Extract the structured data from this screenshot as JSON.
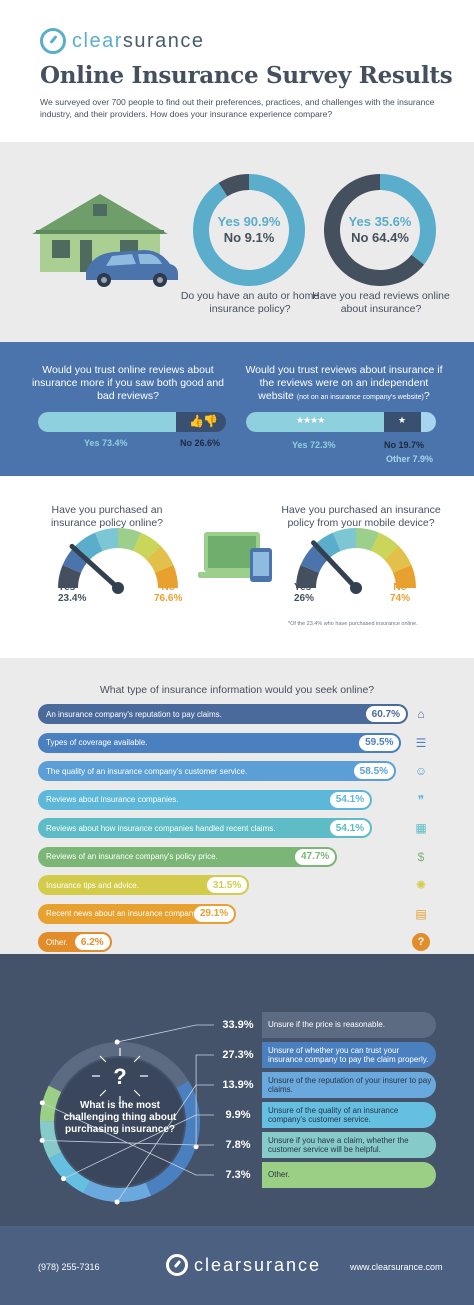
{
  "brand": {
    "prefix": "clear",
    "suffix": "surance"
  },
  "header": {
    "title": "Online Insurance Survey Results",
    "intro": "We surveyed over 700 people to find out their preferences, practices, and challenges with the insurance industry, and their providers. How does your insurance experience compare?"
  },
  "colors": {
    "teal": "#5aaecb",
    "dark": "#45505f",
    "blue": "#4b74ad",
    "navy": "#44526a",
    "orange": "#e8a02f"
  },
  "section1": {
    "donut1": {
      "yes": "Yes 90.9%",
      "no": "No 9.1%",
      "question": "Do you have an auto or home insurance policy?"
    },
    "donut2": {
      "yes": "Yes 35.6%",
      "no": "No 64.4%",
      "question": "Have you read reviews online about insurance?"
    }
  },
  "section2": {
    "q1": "Would you trust online reviews about insurance more if you saw both good and bad reviews?",
    "q1_yes": "Yes 73.4%",
    "q1_no": "No 26.6%",
    "q2": "Would you trust reviews about insurance if the reviews were on an independent website",
    "q2_small": "(not on an insurance company's website)",
    "q2_yes": "Yes 72.3%",
    "q2_no": "No 19.7%",
    "q2_other": "Other 7.9%"
  },
  "section3": {
    "q1": "Have you purchased an insurance policy online?",
    "q1_yes_label": "Yes",
    "q1_yes": "23.4%",
    "q1_no_label": "No",
    "q1_no": "76.6%",
    "q2": "Have you purchased an insurance policy from your mobile device?",
    "q2_yes_label": "Yes",
    "q2_yes": "26%",
    "q2_no_label": "No",
    "q2_no": "74%",
    "note": "*Of the 23.4% who have purchased insurance online."
  },
  "section4": {
    "question": "What type of insurance information would you seek online?"
  },
  "section5": {
    "question": "What is the most challenging thing about purchasing insurance?"
  },
  "footer": {
    "phone": "(978) 255-7316",
    "website": "www.clearsurance.com"
  },
  "chart_data": [
    {
      "type": "pie",
      "title": "Do you have an auto or home insurance policy?",
      "categories": [
        "Yes",
        "No"
      ],
      "values": [
        90.9,
        9.1
      ]
    },
    {
      "type": "pie",
      "title": "Have you read reviews online about insurance?",
      "categories": [
        "Yes",
        "No"
      ],
      "values": [
        35.6,
        64.4
      ]
    },
    {
      "type": "bar",
      "title": "Would you trust online reviews about insurance more if you saw both good and bad reviews?",
      "categories": [
        "Yes",
        "No"
      ],
      "values": [
        73.4,
        26.6
      ]
    },
    {
      "type": "bar",
      "title": "Would you trust reviews about insurance if the reviews were on an independent website",
      "categories": [
        "Yes",
        "No",
        "Other"
      ],
      "values": [
        72.3,
        19.7,
        7.9
      ]
    },
    {
      "type": "pie",
      "title": "Have you purchased an insurance policy online?",
      "categories": [
        "Yes",
        "No"
      ],
      "values": [
        23.4,
        76.6
      ]
    },
    {
      "type": "pie",
      "title": "Have you purchased an insurance policy from your mobile device?",
      "categories": [
        "Yes",
        "No"
      ],
      "values": [
        26,
        74
      ]
    },
    {
      "type": "bar",
      "title": "What type of insurance information would you seek online?",
      "categories": [
        "An insurance company's reputation to pay claims.",
        "Types of coverage available.",
        "The quality of an insurance company's customer service.",
        "Reviews about insurance companies.",
        "Reviews about how insurance companies handled recent claims.",
        "Reviews of an insurance company's policy price.",
        "Insurance tips and advice.",
        "Recent news about an insurance company.",
        "Other."
      ],
      "values": [
        60.7,
        59.5,
        58.5,
        54.1,
        54.1,
        47.7,
        31.5,
        29.1,
        6.2
      ],
      "labels": [
        "60.7%",
        "59.5%",
        "58.5%",
        "54.1%",
        "54.1%",
        "47.7%",
        "31.5%",
        "29.1%",
        "6.2%"
      ],
      "colors": [
        "#4a6a9c",
        "#4b80c0",
        "#5b9fd6",
        "#5cb7d9",
        "#5dbcc5",
        "#7bb677",
        "#d3cc4b",
        "#e8a02f",
        "#e38c2a"
      ],
      "icons": [
        "house-icon",
        "checklist-icon",
        "service-agent-icon",
        "quote-icon",
        "calendar-icon",
        "money-icon",
        "lightbulb-icon",
        "newspaper-icon",
        "question-icon"
      ]
    },
    {
      "type": "pie",
      "title": "What is the most challenging thing about purchasing insurance?",
      "categories": [
        "Unsure if the price is reasonable.",
        "Unsure of whether you can trust your insurance company to pay the claim properly.",
        "Unsure of the reputation of your insurer to pay claims.",
        "Unsure of the quality of an insurance company's customer service.",
        "Unsure if you have a claim, whether the customer service will be helpful.",
        "Other."
      ],
      "values": [
        33.9,
        27.3,
        13.9,
        9.9,
        7.8,
        7.3
      ],
      "labels": [
        "33.9%",
        "27.3%",
        "13.9%",
        "9.9%",
        "7.8%",
        "7.3%"
      ],
      "colors": [
        "#5d6b82",
        "#4b80c0",
        "#6aa9dd",
        "#65bfe0",
        "#86cbc9",
        "#9ccf86"
      ]
    }
  ]
}
